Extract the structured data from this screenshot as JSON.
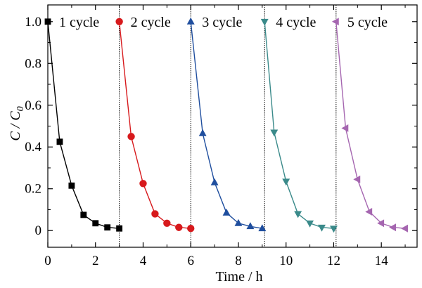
{
  "chart_data": {
    "type": "line",
    "xlabel": "Time / h",
    "ylabel": {
      "main": "C / C",
      "sub": "0"
    },
    "xlim": [
      0,
      15.5
    ],
    "ylim": [
      -0.08,
      1.08
    ],
    "xticks": [
      0,
      2,
      4,
      6,
      8,
      10,
      12,
      14
    ],
    "xtick_labels": [
      "0",
      "2",
      "4",
      "6",
      "8",
      "10",
      "12",
      "14"
    ],
    "yticks": [
      0,
      0.2,
      0.4,
      0.6,
      0.8,
      1.0
    ],
    "ytick_labels": [
      "0",
      "0.2",
      "0.4",
      "0.6",
      "0.8",
      "1.0"
    ],
    "grid": false,
    "cycle_boundaries": [
      3,
      6,
      9.1,
      12.1
    ],
    "series": [
      {
        "name": "1 cycle",
        "color": "#000000",
        "marker": "square",
        "x": [
          0,
          0.5,
          1.0,
          1.5,
          2.0,
          2.5,
          3.0
        ],
        "y": [
          1.0,
          0.425,
          0.215,
          0.075,
          0.035,
          0.015,
          0.01
        ]
      },
      {
        "name": "2 cycle",
        "color": "#d7191c",
        "marker": "circle",
        "x": [
          3.0,
          3.5,
          4.0,
          4.5,
          5.0,
          5.5,
          6.0
        ],
        "y": [
          1.0,
          0.45,
          0.225,
          0.08,
          0.035,
          0.015,
          0.01
        ]
      },
      {
        "name": "3 cycle",
        "color": "#1f4e9e",
        "marker": "triangle-up",
        "x": [
          6.0,
          6.5,
          7.0,
          7.5,
          8.0,
          8.5,
          9.0
        ],
        "y": [
          1.0,
          0.465,
          0.23,
          0.085,
          0.035,
          0.02,
          0.01
        ]
      },
      {
        "name": "4 cycle",
        "color": "#3a8a8a",
        "marker": "triangle-down",
        "x": [
          9.1,
          9.5,
          10.0,
          10.5,
          11.0,
          11.5,
          12.0
        ],
        "y": [
          1.0,
          0.47,
          0.235,
          0.08,
          0.035,
          0.015,
          0.01
        ]
      },
      {
        "name": "5 cycle",
        "color": "#a566b0",
        "marker": "triangle-left",
        "x": [
          12.1,
          12.5,
          13.0,
          13.5,
          14.0,
          14.5,
          15.0
        ],
        "y": [
          1.0,
          0.49,
          0.245,
          0.09,
          0.035,
          0.015,
          0.01
        ]
      }
    ]
  }
}
